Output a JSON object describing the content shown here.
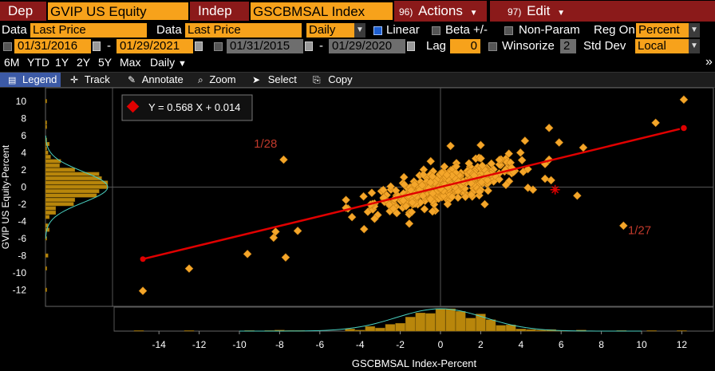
{
  "header": {
    "dep_label": "Dep",
    "dep_ticker": "GVIP US Equity",
    "indep_label": "Indep",
    "indep_ticker": "GSCBMSAL Index",
    "actions_num": "96)",
    "actions_label": "Actions",
    "edit_num": "97)",
    "edit_label": "Edit"
  },
  "settings": {
    "data_label_1": "Data",
    "data_value_1": "Last Price",
    "data_label_2": "Data",
    "data_value_2": "Last Price",
    "frequency": "Daily",
    "linear_label": "Linear",
    "beta_label": "Beta +/-",
    "nonparam_label": "Non-Param",
    "reg_on_label": "Reg On",
    "reg_on_value": "Percent"
  },
  "dates": {
    "start_1": "01/31/2016",
    "end_1": "01/29/2021",
    "start_2": "01/31/2015",
    "end_2": "01/29/2020",
    "dash": "-",
    "lag_label": "Lag",
    "lag_value": "0",
    "winsorize_label": "Winsorize",
    "winsorize_value": "2",
    "std_dev_label": "Std Dev",
    "std_dev_value": "Local"
  },
  "periods": {
    "items": [
      "6M",
      "YTD",
      "1Y",
      "2Y",
      "5Y",
      "Max"
    ],
    "frequency": "Daily",
    "more": "»"
  },
  "toolbar": {
    "legend": "Legend",
    "track": "Track",
    "annotate": "Annotate",
    "zoom": "Zoom",
    "select": "Select",
    "copy": "Copy"
  },
  "colors": {
    "accent_orange": "#f7a21b",
    "regression_red": "#e00000",
    "header_red": "#8b1a1a",
    "point_fill": "#f4a62a"
  },
  "chart_data": {
    "type": "scatter",
    "equation": "Y = 0.568 X + 0.014",
    "xlabel": "GSCBMSAL Index-Percent",
    "ylabel": "GVIP US Equity-Percent",
    "xlim": [
      -16,
      13
    ],
    "ylim": [
      -13.5,
      11
    ],
    "xticks": [
      -14,
      -12,
      -10,
      -8,
      -6,
      -4,
      -2,
      0,
      2,
      4,
      6,
      8,
      10,
      12
    ],
    "yticks": [
      10,
      8,
      6,
      4,
      2,
      0,
      -2,
      -4,
      -6,
      -8,
      -10,
      -12
    ],
    "regression": {
      "slope": 0.568,
      "intercept": 0.014,
      "x_range": [
        -14.8,
        12.1
      ]
    },
    "annotations": [
      {
        "text": "1/28",
        "x": -8.7,
        "y": 4.6
      },
      {
        "text": "1/27",
        "x": 9.9,
        "y": -5.5
      }
    ],
    "highlight_point": {
      "x": 5.7,
      "y": -0.3
    },
    "outliers": [
      {
        "x": -14.8,
        "y": -12.1
      },
      {
        "x": -12.5,
        "y": -9.5
      },
      {
        "x": -9.6,
        "y": -7.8
      },
      {
        "x": -8.2,
        "y": -5.2
      },
      {
        "x": -8.3,
        "y": -5.9
      },
      {
        "x": -7.7,
        "y": -8.2
      },
      {
        "x": -7.1,
        "y": -5.1
      },
      {
        "x": -7.8,
        "y": 3.2
      },
      {
        "x": 12.1,
        "y": 10.2
      },
      {
        "x": 10.7,
        "y": 7.5
      },
      {
        "x": 9.1,
        "y": -4.5
      },
      {
        "x": 6.8,
        "y": -1.0
      },
      {
        "x": 7.1,
        "y": 4.6
      },
      {
        "x": 5.4,
        "y": 6.9
      },
      {
        "x": 5.9,
        "y": 5.2
      },
      {
        "x": 4.2,
        "y": 5.4
      },
      {
        "x": 5.4,
        "y": 3.2
      },
      {
        "x": 4.6,
        "y": -0.3
      },
      {
        "x": 0.5,
        "y": 4.8
      },
      {
        "x": 2.0,
        "y": 4.9
      },
      {
        "x": 2.2,
        "y": -2.0
      },
      {
        "x": -4.6,
        "y": -2.5
      },
      {
        "x": -4.4,
        "y": -3.5
      },
      {
        "x": -3.8,
        "y": -4.9
      },
      {
        "x": 5.5,
        "y": 0.8
      },
      {
        "x": 3.4,
        "y": 3.9
      }
    ],
    "cluster": {
      "count": 380,
      "x_mean": 0.3,
      "x_sd": 1.8,
      "noise_sd": 1.0,
      "x_min": -4.7,
      "x_max": 5.2
    }
  }
}
